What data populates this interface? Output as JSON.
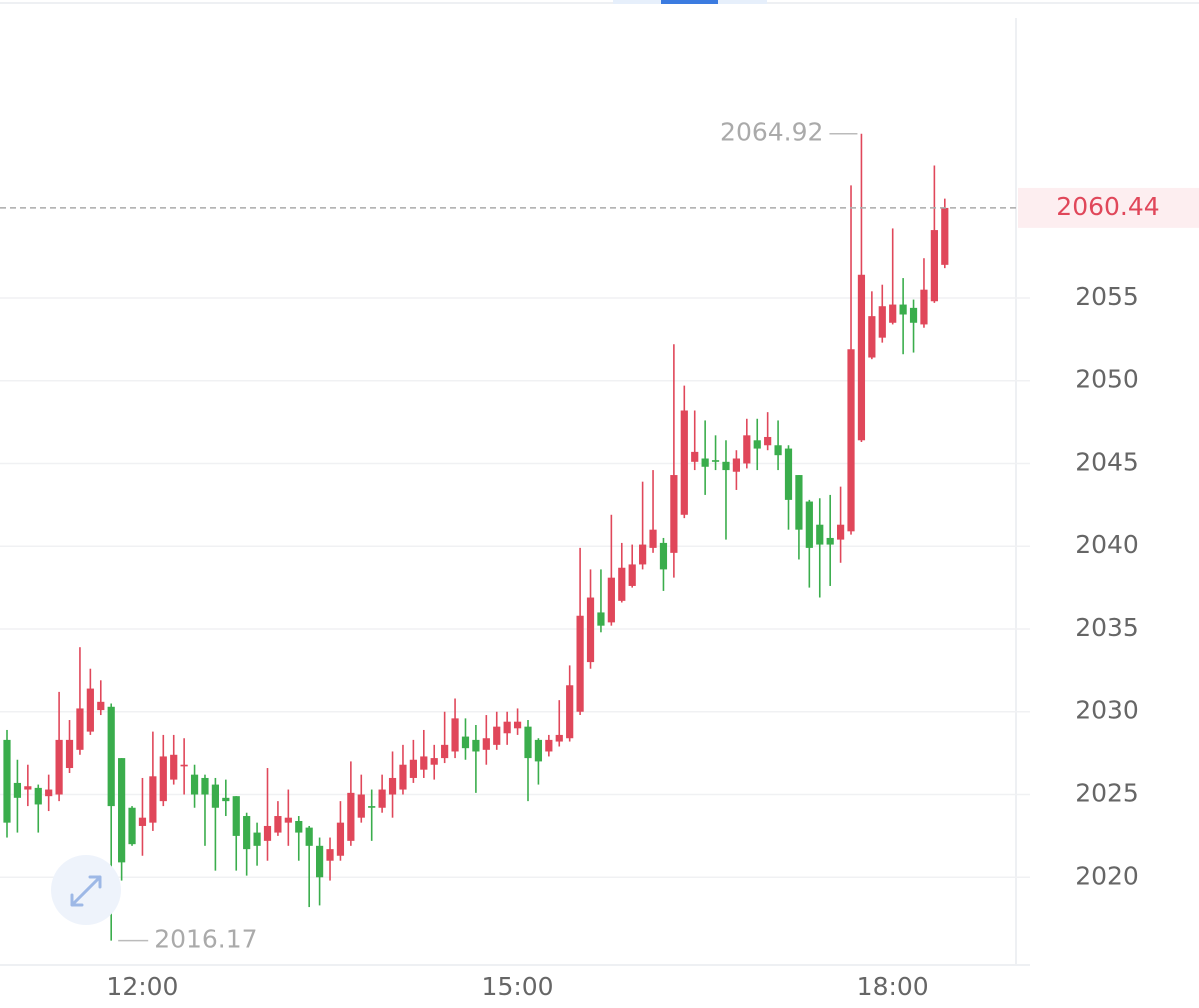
{
  "chart_data": {
    "type": "candlestick",
    "categories": [
      null,
      null,
      null,
      null,
      null,
      null,
      null,
      null,
      null,
      null,
      null,
      null,
      null,
      "12:00",
      null,
      null,
      null,
      null,
      null,
      null,
      null,
      null,
      null,
      null,
      null,
      null,
      null,
      null,
      null,
      null,
      null,
      null,
      null,
      null,
      null,
      null,
      null,
      null,
      null,
      null,
      null,
      null,
      null,
      null,
      null,
      null,
      null,
      null,
      null,
      "15:00",
      null,
      null,
      null,
      null,
      null,
      null,
      null,
      null,
      null,
      null,
      null,
      null,
      null,
      null,
      null,
      null,
      null,
      null,
      null,
      null,
      null,
      null,
      null,
      null,
      null,
      null,
      null,
      null,
      null,
      null,
      null,
      null,
      null,
      null,
      null,
      "18:00",
      null,
      null,
      null,
      null,
      null
    ],
    "open": [
      2028.3,
      2025.7,
      2025.3,
      2025.4,
      2024.9,
      2025.0,
      2026.6,
      2027.7,
      2028.8,
      2030.1,
      2030.3,
      2027.2,
      2024.2,
      2023.1,
      2023.3,
      2024.6,
      2025.9,
      2026.7,
      2026.2,
      2026.0,
      2025.6,
      2024.8,
      2024.9,
      2023.7,
      2022.7,
      2022.2,
      2022.7,
      2023.3,
      2023.4,
      2023.0,
      2021.9,
      2021.0,
      2021.3,
      2022.2,
      2023.6,
      2024.3,
      2024.2,
      2025.0,
      2025.3,
      2026.0,
      2026.5,
      2026.8,
      2027.2,
      2027.6,
      2028.5,
      2028.3,
      2027.7,
      2028.0,
      2028.7,
      2029.0,
      2029.1,
      2028.3,
      2027.6,
      2028.2,
      2028.4,
      2030.0,
      2033.0,
      2036.0,
      2035.4,
      2036.7,
      2037.6,
      2038.9,
      2039.9,
      2040.2,
      2039.6,
      2041.9,
      2045.1,
      2045.3,
      2045.2,
      2045.1,
      2044.5,
      2045.0,
      2046.4,
      2046.1,
      2046.1,
      2045.9,
      2044.3,
      2042.7,
      2041.3,
      2040.5,
      2040.4,
      2040.9,
      2046.4,
      2051.4,
      2052.6,
      2053.5,
      2054.6,
      2054.4,
      2053.4,
      2054.8,
      2057.0
    ],
    "high": [
      2028.9,
      2027.1,
      2026.8,
      2025.6,
      2026.2,
      2031.2,
      2029.5,
      2033.9,
      2032.6,
      2031.9,
      2030.5,
      2027.2,
      2024.3,
      2026.0,
      2028.8,
      2028.6,
      2028.6,
      2028.4,
      2026.8,
      2026.2,
      2026.0,
      2025.9,
      2024.9,
      2023.9,
      2023.3,
      2026.6,
      2024.6,
      2025.3,
      2023.7,
      2023.1,
      2022.4,
      2022.4,
      2024.6,
      2027.0,
      2026.2,
      2025.3,
      2026.2,
      2027.6,
      2028.0,
      2028.3,
      2028.9,
      2028.0,
      2030.0,
      2030.8,
      2029.6,
      2029.2,
      2029.8,
      2030.0,
      2030.0,
      2030.2,
      2029.5,
      2028.4,
      2028.6,
      2030.7,
      2032.8,
      2039.9,
      2038.6,
      2038.6,
      2041.9,
      2040.2,
      2040.1,
      2043.9,
      2044.6,
      2040.5,
      2052.2,
      2049.7,
      2048.2,
      2047.6,
      2046.7,
      2046.4,
      2045.8,
      2047.7,
      2047.7,
      2048.1,
      2047.6,
      2046.1,
      2044.3,
      2042.8,
      2042.9,
      2043.1,
      2043.6,
      2061.8,
      2064.92,
      2055.4,
      2055.8,
      2059.2,
      2056.2,
      2054.9,
      2057.4,
      2063.0,
      2061.0
    ],
    "low": [
      2022.4,
      2022.7,
      2024.3,
      2022.7,
      2024.0,
      2024.6,
      2026.3,
      2027.4,
      2028.6,
      2029.8,
      2016.17,
      2019.8,
      2021.9,
      2021.3,
      2022.8,
      2024.3,
      2025.6,
      2025.0,
      2024.2,
      2021.9,
      2020.4,
      2023.7,
      2020.4,
      2020.1,
      2020.7,
      2021.0,
      2022.5,
      2021.9,
      2021.0,
      2018.2,
      2018.3,
      2019.8,
      2021.0,
      2021.9,
      2023.3,
      2022.2,
      2023.9,
      2023.6,
      2025.0,
      2025.7,
      2026.0,
      2025.9,
      2026.9,
      2027.2,
      2027.1,
      2025.1,
      2026.8,
      2027.7,
      2028.0,
      2028.6,
      2024.6,
      2025.6,
      2027.3,
      2027.9,
      2028.2,
      2029.8,
      2032.6,
      2034.8,
      2035.2,
      2036.6,
      2037.5,
      2038.6,
      2039.6,
      2037.3,
      2038.1,
      2041.7,
      2044.6,
      2043.1,
      2044.6,
      2040.4,
      2043.4,
      2044.7,
      2044.6,
      2045.8,
      2044.6,
      2041.0,
      2039.2,
      2037.5,
      2036.9,
      2037.6,
      2039.0,
      2040.7,
      2046.3,
      2051.3,
      2052.3,
      2053.4,
      2051.6,
      2051.7,
      2053.2,
      2054.7,
      2056.8
    ],
    "close": [
      2023.3,
      2024.8,
      2025.5,
      2024.4,
      2025.3,
      2028.3,
      2028.3,
      2030.2,
      2031.4,
      2030.6,
      2024.3,
      2020.9,
      2022.0,
      2023.6,
      2026.1,
      2027.3,
      2027.4,
      2026.8,
      2025.0,
      2025.0,
      2024.2,
      2024.6,
      2022.5,
      2021.7,
      2021.9,
      2023.1,
      2023.7,
      2023.6,
      2022.7,
      2021.9,
      2020.0,
      2021.7,
      2023.3,
      2025.1,
      2025.0,
      2024.2,
      2025.3,
      2026.0,
      2026.8,
      2027.1,
      2027.3,
      2027.2,
      2028.0,
      2029.6,
      2027.8,
      2027.6,
      2028.4,
      2029.1,
      2029.4,
      2029.4,
      2027.2,
      2027.0,
      2028.3,
      2028.6,
      2031.6,
      2035.8,
      2036.9,
      2035.2,
      2038.1,
      2038.7,
      2038.9,
      2040.1,
      2041.0,
      2038.6,
      2044.3,
      2048.2,
      2045.7,
      2044.8,
      2045.1,
      2044.6,
      2045.3,
      2046.7,
      2045.9,
      2046.6,
      2045.5,
      2042.8,
      2041.0,
      2039.9,
      2040.1,
      2040.1,
      2041.3,
      2051.9,
      2056.4,
      2053.9,
      2054.5,
      2054.6,
      2054.0,
      2053.5,
      2055.5,
      2059.1,
      2060.44
    ],
    "up_color": "#e0475a",
    "down_color": "#3aad4c",
    "ylim": [
      2014.7,
      2073
    ],
    "yticks": [
      2020,
      2025,
      2030,
      2035,
      2040,
      2045,
      2050,
      2055
    ],
    "grid": true
  }
}
